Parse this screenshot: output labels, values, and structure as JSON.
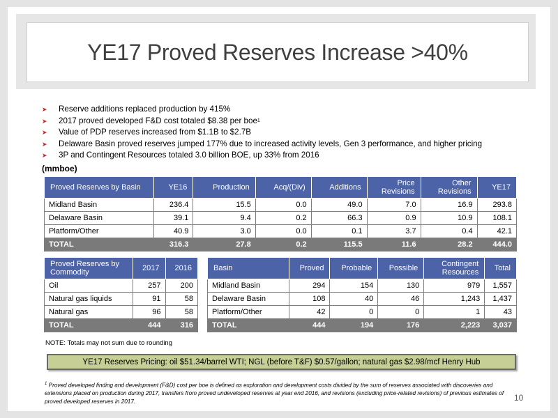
{
  "title": "YE17 Proved Reserves Increase >40%",
  "bullets": [
    "Reserve additions replaced production by 415%",
    "2017 proved developed F&D cost totaled $8.38 per boe",
    "Value of PDP reserves increased from $1.1B to $2.7B",
    "Delaware Basin proved reserves jumped 177% due to increased activity levels, Gen 3 performance, and higher pricing",
    "3P and Contingent Resources totaled 3.0 billion BOE, up 33% from 2016"
  ],
  "bullet_footnote_mark": "1",
  "unit_label": "(mmboe)",
  "basin_table": {
    "headers": [
      "Proved Reserves by Basin",
      "YE16",
      "Production",
      "Acq/(Div)",
      "Additions",
      "Price Revisions",
      "Other Revisions",
      "YE17"
    ],
    "rows": [
      [
        "Midland Basin",
        "236.4",
        "15.5",
        "0.0",
        "49.0",
        "7.0",
        "16.9",
        "293.8"
      ],
      [
        "Delaware Basin",
        "39.1",
        "9.4",
        "0.2",
        "66.3",
        "0.9",
        "10.9",
        "108.1"
      ],
      [
        "Platform/Other",
        "40.9",
        "3.0",
        "0.0",
        "0.1",
        "3.7",
        "0.4",
        "42.1"
      ]
    ],
    "total": [
      "TOTAL",
      "316.3",
      "27.8",
      "0.2",
      "115.5",
      "11.6",
      "28.2",
      "444.0"
    ]
  },
  "commodity_table": {
    "headers": [
      "Proved Reserves by Commodity",
      "2017",
      "2016"
    ],
    "rows": [
      [
        "Oil",
        "257",
        "200"
      ],
      [
        "Natural gas liquids",
        "91",
        "58"
      ],
      [
        "Natural gas",
        "96",
        "58"
      ]
    ],
    "total": [
      "TOTAL",
      "444",
      "316"
    ]
  },
  "resources_table": {
    "headers": [
      "Basin",
      "Proved",
      "Probable",
      "Possible",
      "Contingent Resources",
      "Total"
    ],
    "rows": [
      [
        "Midland Basin",
        "294",
        "154",
        "130",
        "979",
        "1,557"
      ],
      [
        "Delaware Basin",
        "108",
        "40",
        "46",
        "1,243",
        "1,437"
      ],
      [
        "Platform/Other",
        "42",
        "0",
        "0",
        "1",
        "43"
      ]
    ],
    "total": [
      "TOTAL",
      "444",
      "194",
      "176",
      "2,223",
      "3,037"
    ]
  },
  "note": "NOTE: Totals may not sum due to rounding",
  "pricing": "YE17 Reserves Pricing: oil $51.34/barrel WTI; NGL (before T&F) $0.57/gallon; natural gas $2.98/mcf Henry Hub",
  "footnote_mark": "1",
  "footnote": "Proved developed finding and development (F&D) cost per boe is defined as exploration and development costs divided by the sum of reserves associated with discoveries and extensions placed on production during 2017, transfers from proved undeveloped reserves at year end 2016, and revisions (excluding price-related revisions) of previous estimates of proved developed reserves in 2017.",
  "page_number": "10",
  "colors": {
    "header": "#4d63a8",
    "total_row": "#7a7a7a",
    "pricing_box": "#c5cf96",
    "bullet_arrow": "#c0282d"
  }
}
